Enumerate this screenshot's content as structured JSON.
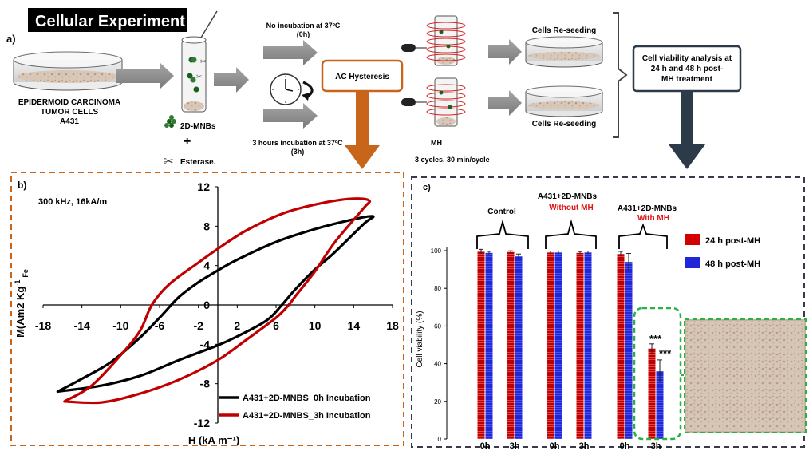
{
  "header": {
    "title": "Cellular Experiment",
    "panel_a_label": "a)"
  },
  "panel_a": {
    "source_lines": [
      "EPIDERMOID CARCINOMA",
      "TUMOR CELLS",
      "A431"
    ],
    "reagent_mnbs": "2D-MNBs",
    "plus": "+",
    "reagent_esterase": "Esterase.",
    "no_incubation_lines": [
      "No incubation at 37ºC",
      "(0h)"
    ],
    "incubation_lines": [
      "3 hours incubation at 37ºC",
      "(3h)"
    ],
    "ac_box": "AC Hysteresis",
    "mh_lines": [
      "MH",
      "3 cycles, 30 min/cycle"
    ],
    "reseeding_top": "Cells Re-seeding",
    "reseeding_bottom": "Cells Re-seeding",
    "viability_lines": [
      "Cell viability analysis at",
      "24 h and 48 h post-",
      "MH treatment"
    ],
    "accent_color": "#c8651b",
    "dark_arrow_color": "#2c3a4a"
  },
  "panel_b": {
    "label": "b)",
    "condition": "300 kHz, 16kA/m",
    "chart_data": {
      "type": "line",
      "xlabel": "H (kA m⁻¹)",
      "ylabel": "M(Am2 Kg⁻¹ Fe)",
      "ylabel_main": "M(Am2 Kg",
      "ylabel_sup": "-1",
      "ylabel_sub": "Fe",
      "xlim": [
        -18,
        18
      ],
      "ylim": [
        -12,
        12
      ],
      "x_ticks": [
        -18,
        -14,
        -10,
        -6,
        -2,
        2,
        6,
        10,
        14,
        18
      ],
      "y_ticks": [
        -12,
        -8,
        -4,
        0,
        4,
        8,
        12
      ],
      "grid": false,
      "legend_position": "bottom-right",
      "series": [
        {
          "name": "A431+2D-MNBS_0h Incubation",
          "color": "#000000",
          "upper": [
            [
              -16.5,
              -8.8
            ],
            [
              -14,
              -7.5
            ],
            [
              -11,
              -5.8
            ],
            [
              -8,
              -3.3
            ],
            [
              -6,
              -1.3
            ],
            [
              -4,
              0.8
            ],
            [
              -2,
              2.3
            ],
            [
              0,
              3.5
            ],
            [
              2,
              4.6
            ],
            [
              6,
              6.4
            ],
            [
              10,
              7.7
            ],
            [
              14,
              8.7
            ],
            [
              16,
              9.0
            ]
          ],
          "lower": [
            [
              16,
              9.0
            ],
            [
              15,
              8.2
            ],
            [
              12,
              5.3
            ],
            [
              10,
              3.6
            ],
            [
              8,
              1.6
            ],
            [
              6.6,
              0
            ],
            [
              5,
              -1.6
            ],
            [
              2,
              -3.2
            ],
            [
              0,
              -4.1
            ],
            [
              -4,
              -5.6
            ],
            [
              -8,
              -7.2
            ],
            [
              -12,
              -8.2
            ],
            [
              -16.5,
              -8.8
            ]
          ]
        },
        {
          "name": "A431+2D-MNBS_3h Incubation",
          "color": "#c00000",
          "upper": [
            [
              -15.8,
              -9.8
            ],
            [
              -13,
              -8.2
            ],
            [
              -10,
              -5.1
            ],
            [
              -8,
              -2.6
            ],
            [
              -6.8,
              0
            ],
            [
              -5,
              2.1
            ],
            [
              -2,
              4.3
            ],
            [
              0,
              5.7
            ],
            [
              3,
              7.6
            ],
            [
              7,
              9.4
            ],
            [
              11,
              10.4
            ],
            [
              14,
              10.8
            ],
            [
              15.6,
              10.6
            ]
          ],
          "lower": [
            [
              15.6,
              10.6
            ],
            [
              15,
              9.8
            ],
            [
              12,
              6.3
            ],
            [
              10,
              3.4
            ],
            [
              8,
              0.9
            ],
            [
              7.3,
              0
            ],
            [
              6,
              -1.3
            ],
            [
              3,
              -3.5
            ],
            [
              0,
              -5.6
            ],
            [
              -4,
              -7.6
            ],
            [
              -8,
              -9.0
            ],
            [
              -12,
              -9.9
            ],
            [
              -15.8,
              -9.8
            ]
          ]
        }
      ]
    }
  },
  "panel_c": {
    "label": "c)",
    "group_labels": {
      "control": "Control",
      "without_name": "A431+2D-MNBs",
      "without_note": "Without MH",
      "with_name": "A431+2D-MNBs",
      "with_note": "With MH"
    },
    "significance": "***",
    "chart_data": {
      "type": "bar",
      "ylabel": "Cell viability (%)",
      "ylim": [
        0,
        100
      ],
      "y_ticks": [
        0,
        20,
        40,
        60,
        80,
        100
      ],
      "grid": false,
      "legend_position": "top-right",
      "categories": [
        "0h",
        "3h",
        "0h",
        "3h",
        "0h",
        "3h"
      ],
      "series": [
        {
          "name": "24 h post-MH",
          "color": "#c00000",
          "values": [
            99.5,
            99.3,
            99.0,
            98.8,
            98.3,
            48.0
          ],
          "errors": [
            1.2,
            0.6,
            0.8,
            0.7,
            1.3,
            2.5
          ]
        },
        {
          "name": "48 h post-MH",
          "color": "#1f27d6",
          "values": [
            98.8,
            97.0,
            99.0,
            99.0,
            94.0,
            36.0
          ],
          "errors": [
            0.8,
            1.2,
            0.8,
            0.8,
            4.5,
            6.0
          ]
        }
      ]
    }
  }
}
